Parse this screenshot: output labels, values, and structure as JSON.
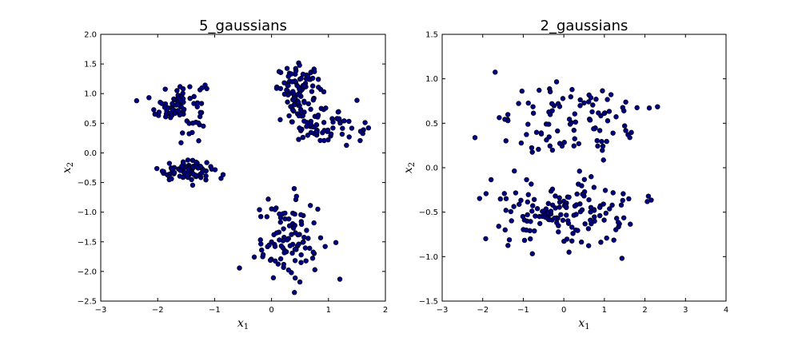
{
  "chart_data": [
    {
      "type": "scatter",
      "title": "5_gaussians",
      "xlabel": "x",
      "xlabel_sub": "1",
      "ylabel": "x",
      "ylabel_sub": "2",
      "xlim": [
        -3,
        2
      ],
      "ylim": [
        -2.5,
        2.0
      ],
      "xticks": [
        "−3",
        "−2",
        "−1",
        "0",
        "1",
        "2"
      ],
      "yticks": [
        "−2.5",
        "−2.0",
        "−1.5",
        "−1.0",
        "−0.5",
        "0.0",
        "0.5",
        "1.0",
        "1.5",
        "2.0"
      ],
      "grid": false,
      "marker_color": "#000080",
      "clusters": [
        {
          "center": [
            -1.6,
            0.8
          ],
          "n": 80,
          "spread": [
            0.22,
            0.22
          ]
        },
        {
          "center": [
            -1.5,
            -0.3
          ],
          "n": 80,
          "spread": [
            0.25,
            0.08
          ]
        },
        {
          "center": [
            0.5,
            1.1
          ],
          "n": 80,
          "spread": [
            0.2,
            0.18
          ]
        },
        {
          "center": [
            0.9,
            0.5
          ],
          "n": 80,
          "spread": [
            0.35,
            0.18
          ]
        },
        {
          "center": [
            0.3,
            -1.5
          ],
          "n": 100,
          "spread": [
            0.3,
            0.35
          ]
        }
      ]
    },
    {
      "type": "scatter",
      "title": "2_gaussians",
      "xlabel": "x",
      "xlabel_sub": "1",
      "ylabel": "x",
      "ylabel_sub": "2",
      "xlim": [
        -3,
        4
      ],
      "ylim": [
        -1.5,
        1.5
      ],
      "xticks": [
        "−3",
        "−2",
        "−1",
        "0",
        "1",
        "2",
        "3",
        "4"
      ],
      "yticks": [
        "−1.5",
        "−1.0",
        "−0.5",
        "0.0",
        "0.5",
        "1.0",
        "1.5"
      ],
      "grid": false,
      "marker_color": "#000080",
      "clusters": [
        {
          "center": [
            0.3,
            0.5
          ],
          "n": 100,
          "spread": [
            0.9,
            0.2
          ]
        },
        {
          "center": [
            0.0,
            -0.5
          ],
          "n": 150,
          "spread": [
            0.9,
            0.2
          ]
        }
      ]
    }
  ]
}
